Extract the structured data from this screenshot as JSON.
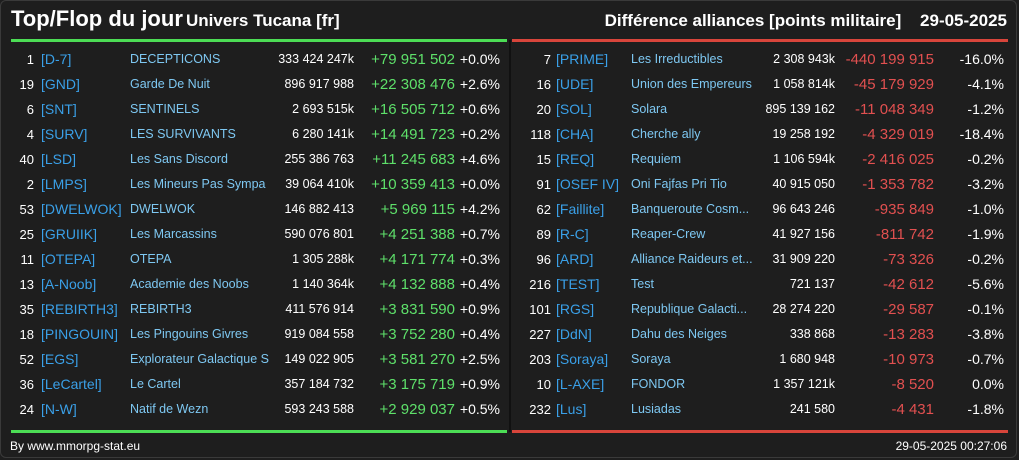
{
  "header": {
    "title": "Top/Flop du jour",
    "universe": "Univers Tucana [fr]",
    "metric": "Différence alliances [points militaire]",
    "date": "29-05-2025"
  },
  "colors": {
    "positive": "#5ee06a",
    "negative": "#e25050",
    "tag": "#3aa0e8",
    "name": "#7ec8f2"
  },
  "top": [
    {
      "rank": "1",
      "tag": "[D-7]",
      "name": "DECEPTICONS",
      "points": "333 424 247k",
      "diff": "+79 951 502",
      "pct": "+0.0%"
    },
    {
      "rank": "19",
      "tag": "[GND]",
      "name": "Garde De Nuit",
      "points": "896 917 988",
      "diff": "+22 308 476",
      "pct": "+2.6%"
    },
    {
      "rank": "6",
      "tag": "[SNT]",
      "name": "SENTINELS",
      "points": "2 693 515k",
      "diff": "+16 505 712",
      "pct": "+0.6%"
    },
    {
      "rank": "4",
      "tag": "[SURV]",
      "name": "LES SURVIVANTS",
      "points": "6 280 141k",
      "diff": "+14 491 723",
      "pct": "+0.2%"
    },
    {
      "rank": "40",
      "tag": "[LSD]",
      "name": "Les Sans Discord",
      "points": "255 386 763",
      "diff": "+11 245 683",
      "pct": "+4.6%"
    },
    {
      "rank": "2",
      "tag": "[LMPS]",
      "name": "Les Mineurs Pas Sympa",
      "points": "39 064 410k",
      "diff": "+10 359 413",
      "pct": "+0.0%"
    },
    {
      "rank": "53",
      "tag": "[DWELWOK]",
      "name": "DWELWOK",
      "points": "146 882 413",
      "diff": "+5 969 115",
      "pct": "+4.2%"
    },
    {
      "rank": "25",
      "tag": "[GRUIIK]",
      "name": "Les Marcassins",
      "points": "590 076 801",
      "diff": "+4 251 388",
      "pct": "+0.7%"
    },
    {
      "rank": "11",
      "tag": "[OTEPA]",
      "name": "OTEPA",
      "points": "1 305 288k",
      "diff": "+4 171 774",
      "pct": "+0.3%"
    },
    {
      "rank": "13",
      "tag": "[A-Noob]",
      "name": "Academie des Noobs",
      "points": "1 140 364k",
      "diff": "+4 132 888",
      "pct": "+0.4%"
    },
    {
      "rank": "35",
      "tag": "[REBIRTH3]",
      "name": "REBIRTH3",
      "points": "411 576 914",
      "diff": "+3 831 590",
      "pct": "+0.9%"
    },
    {
      "rank": "18",
      "tag": "[PINGOUIN]",
      "name": "Les Pingouins Givres",
      "points": "919 084 558",
      "diff": "+3 752 280",
      "pct": "+0.4%"
    },
    {
      "rank": "52",
      "tag": "[EGS]",
      "name": "Explorateur Galactique S",
      "points": "149 022 905",
      "diff": "+3 581 270",
      "pct": "+2.5%"
    },
    {
      "rank": "36",
      "tag": "[LeCartel]",
      "name": "Le Cartel",
      "points": "357 184 732",
      "diff": "+3 175 719",
      "pct": "+0.9%"
    },
    {
      "rank": "24",
      "tag": "[N-W]",
      "name": "Natif de Wezn",
      "points": "593 243 588",
      "diff": "+2 929 037",
      "pct": "+0.5%"
    }
  ],
  "flop": [
    {
      "rank": "7",
      "tag": "[PRIME]",
      "name": "Les Irreductibles",
      "points": "2 308 943k",
      "diff": "-440 199 915",
      "pct": "-16.0%"
    },
    {
      "rank": "16",
      "tag": "[UDE]",
      "name": "Union des Empereurs",
      "points": "1 058 814k",
      "diff": "-45 179 929",
      "pct": "-4.1%"
    },
    {
      "rank": "20",
      "tag": "[SOL]",
      "name": "Solara",
      "points": "895 139 162",
      "diff": "-11 048 349",
      "pct": "-1.2%"
    },
    {
      "rank": "118",
      "tag": "[CHA]",
      "name": "Cherche ally",
      "points": "19 258 192",
      "diff": "-4 329 019",
      "pct": "-18.4%"
    },
    {
      "rank": "15",
      "tag": "[REQ]",
      "name": "Requiem",
      "points": "1 106 594k",
      "diff": "-2 416 025",
      "pct": "-0.2%"
    },
    {
      "rank": "91",
      "tag": "[OSEF IV]",
      "name": "Oni Fajfas Pri Tio",
      "points": "40 915 050",
      "diff": "-1 353 782",
      "pct": "-3.2%"
    },
    {
      "rank": "62",
      "tag": "[Faillite]",
      "name": "Banqueroute Cosm...",
      "points": "96 643 246",
      "diff": "-935 849",
      "pct": "-1.0%"
    },
    {
      "rank": "89",
      "tag": "[R-C]",
      "name": "Reaper-Crew",
      "points": "41 927 156",
      "diff": "-811 742",
      "pct": "-1.9%"
    },
    {
      "rank": "96",
      "tag": "[ARD]",
      "name": "Alliance Raideurs et...",
      "points": "31 909 220",
      "diff": "-73 326",
      "pct": "-0.2%"
    },
    {
      "rank": "216",
      "tag": "[TEST]",
      "name": "Test",
      "points": "721 137",
      "diff": "-42 612",
      "pct": "-5.6%"
    },
    {
      "rank": "101",
      "tag": "[RGS]",
      "name": "Republique Galacti...",
      "points": "28 274 220",
      "diff": "-29 587",
      "pct": "-0.1%"
    },
    {
      "rank": "227",
      "tag": "[DdN]",
      "name": "Dahu des Neiges",
      "points": "338 868",
      "diff": "-13 283",
      "pct": "-3.8%"
    },
    {
      "rank": "203",
      "tag": "[Soraya]",
      "name": "Soraya",
      "points": "1 680 948",
      "diff": "-10 973",
      "pct": "-0.7%"
    },
    {
      "rank": "10",
      "tag": "[L-AXE]",
      "name": "FONDOR",
      "points": "1 357 121k",
      "diff": "-8 520",
      "pct": "0.0%"
    },
    {
      "rank": "232",
      "tag": "[Lus]",
      "name": "Lusiadas",
      "points": "241 580",
      "diff": "-4 431",
      "pct": "-1.8%"
    }
  ],
  "footer": {
    "source": "By www.mmorpg-stat.eu",
    "timestamp": "29-05-2025 00:27:06"
  }
}
